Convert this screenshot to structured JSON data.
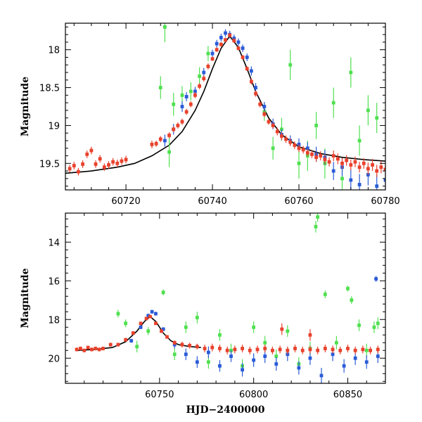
{
  "chart_data": [
    {
      "type": "scatter",
      "panel": "top",
      "xlabel": "",
      "ylabel": "Magnitude",
      "xlim": [
        60706,
        60780
      ],
      "ylim": [
        19.85,
        17.65
      ],
      "y_inverted": true,
      "xticks": [
        60720,
        60740,
        60760,
        60780
      ],
      "xtick_labels": [
        "60720",
        "60740",
        "60760",
        "60780"
      ],
      "yticks": [
        18,
        18.5,
        19,
        19.5
      ],
      "ytick_labels": [
        "18",
        "18.5",
        "19",
        "19.5"
      ],
      "grid": false,
      "legend": "none",
      "model_curve": {
        "color": "#000000",
        "x": [
          60706,
          60712,
          60718,
          60722,
          60726,
          60730,
          60733,
          60736,
          60738,
          60740,
          60742,
          60744,
          60746,
          60748,
          60750,
          60753,
          60756,
          60760,
          60765,
          60770,
          60775,
          60780
        ],
        "y": [
          19.63,
          19.6,
          19.55,
          19.5,
          19.4,
          19.26,
          19.08,
          18.8,
          18.55,
          18.25,
          17.98,
          17.82,
          17.97,
          18.25,
          18.55,
          18.9,
          19.12,
          19.28,
          19.37,
          19.42,
          19.45,
          19.47
        ]
      },
      "series": [
        {
          "color": "#e8412c",
          "x": [
            60707,
            60708,
            60709,
            60710,
            60711,
            60712,
            60713,
            60714,
            60715,
            60716,
            60717,
            60718,
            60719,
            60720,
            60726,
            60727,
            60728,
            60730,
            60731,
            60732,
            60733,
            60734,
            60735,
            60736,
            60737,
            60738,
            60739,
            60740,
            60741,
            60742,
            60743,
            60744,
            60745,
            60746,
            60747,
            60748,
            60749,
            60750,
            60751,
            60752,
            60753,
            60754,
            60755,
            60756,
            60757,
            60758,
            60759,
            60760,
            60761,
            60762,
            60763,
            60764,
            60765,
            60766,
            60767,
            60768,
            60769,
            60770,
            60771,
            60772,
            60773,
            60774,
            60775,
            60776,
            60777,
            60778,
            60779,
            60780
          ],
          "y": [
            19.57,
            19.53,
            19.61,
            19.51,
            19.38,
            19.33,
            19.51,
            19.44,
            19.55,
            19.52,
            19.48,
            19.5,
            19.47,
            19.45,
            19.25,
            19.24,
            19.18,
            19.13,
            19.05,
            19.0,
            18.95,
            18.82,
            18.72,
            18.6,
            18.48,
            18.38,
            18.22,
            18.12,
            18.0,
            17.93,
            17.87,
            17.81,
            17.88,
            17.98,
            18.1,
            18.25,
            18.42,
            18.58,
            18.72,
            18.85,
            18.95,
            19.0,
            19.08,
            19.14,
            19.18,
            19.22,
            19.26,
            19.3,
            19.32,
            19.36,
            19.38,
            19.42,
            19.4,
            19.45,
            19.48,
            19.4,
            19.44,
            19.5,
            19.46,
            19.52,
            19.48,
            19.55,
            19.5,
            19.57,
            19.52,
            19.6,
            19.55,
            19.58
          ],
          "yerr": [
            0.05,
            0.05,
            0.05,
            0.05,
            0.05,
            0.05,
            0.05,
            0.05,
            0.05,
            0.05,
            0.05,
            0.05,
            0.05,
            0.05,
            0.05,
            0.04,
            0.04,
            0.04,
            0.04,
            0.04,
            0.04,
            0.04,
            0.04,
            0.04,
            0.04,
            0.04,
            0.04,
            0.03,
            0.03,
            0.03,
            0.03,
            0.03,
            0.03,
            0.03,
            0.03,
            0.03,
            0.04,
            0.04,
            0.04,
            0.04,
            0.04,
            0.04,
            0.05,
            0.05,
            0.05,
            0.05,
            0.05,
            0.05,
            0.05,
            0.05,
            0.05,
            0.06,
            0.06,
            0.06,
            0.06,
            0.07,
            0.07,
            0.07,
            0.07,
            0.07,
            0.07,
            0.07,
            0.07,
            0.08,
            0.08,
            0.08,
            0.08,
            0.08
          ]
        },
        {
          "color": "#2a5bd7",
          "x": [
            60729,
            60731,
            60733,
            60734,
            60736,
            60738,
            60740,
            60741,
            60742,
            60743,
            60744,
            60745,
            60746,
            60747,
            60748,
            60749,
            60750,
            60752,
            60754,
            60756,
            60758,
            60760,
            60762,
            60764,
            60766,
            60768,
            60770,
            60772,
            60774,
            60776,
            60778,
            60780
          ],
          "y": [
            19.2,
            19.05,
            18.75,
            18.62,
            18.55,
            18.3,
            18.05,
            17.92,
            17.84,
            17.78,
            17.8,
            17.85,
            17.9,
            17.98,
            18.1,
            18.28,
            18.5,
            18.75,
            18.98,
            19.12,
            19.2,
            19.25,
            19.3,
            19.38,
            19.42,
            19.6,
            19.55,
            19.72,
            19.78,
            19.65,
            19.8,
            19.72
          ],
          "yerr": [
            0.08,
            0.07,
            0.07,
            0.06,
            0.06,
            0.06,
            0.05,
            0.05,
            0.05,
            0.05,
            0.05,
            0.05,
            0.05,
            0.05,
            0.05,
            0.06,
            0.06,
            0.06,
            0.07,
            0.07,
            0.07,
            0.08,
            0.08,
            0.1,
            0.1,
            0.12,
            0.12,
            0.14,
            0.14,
            0.14,
            0.15,
            0.15
          ]
        },
        {
          "color": "#4fe04f",
          "x": [
            60728,
            60729,
            60730,
            60731,
            60733,
            60735,
            60737,
            60739,
            60752,
            60754,
            60756,
            60758,
            60760,
            60762,
            60764,
            60766,
            60768,
            60770,
            60772,
            60774,
            60776,
            60778
          ],
          "y": [
            18.5,
            17.7,
            19.35,
            18.72,
            18.6,
            18.55,
            18.35,
            18.05,
            18.82,
            19.3,
            19.05,
            18.2,
            19.5,
            19.4,
            19.0,
            19.5,
            18.7,
            19.7,
            18.3,
            19.2,
            18.8,
            18.9
          ],
          "yerr": [
            0.15,
            0.2,
            0.2,
            0.15,
            0.12,
            0.12,
            0.12,
            0.1,
            0.12,
            0.15,
            0.15,
            0.2,
            0.2,
            0.2,
            0.18,
            0.2,
            0.2,
            0.2,
            0.2,
            0.2,
            0.2,
            0.2
          ]
        }
      ]
    },
    {
      "type": "scatter",
      "panel": "bottom",
      "xlabel": "HJD−2400000",
      "ylabel": "Magnitude",
      "xlim": [
        60700,
        60870
      ],
      "ylim": [
        21.3,
        12.5
      ],
      "y_inverted": true,
      "xticks": [
        60750,
        60800,
        60850
      ],
      "xtick_labels": [
        "60750",
        "60800",
        "60850"
      ],
      "yticks": [
        14,
        16,
        18,
        20
      ],
      "ytick_labels": [
        "14",
        "16",
        "18",
        "20"
      ],
      "grid": false,
      "legend": "none",
      "model_curve": {
        "color": "#000000",
        "x": [
          60706,
          60715,
          60725,
          60732,
          60738,
          60742,
          60745,
          60748,
          60752,
          60756,
          60760,
          60766,
          60772
        ],
        "y": [
          19.6,
          19.55,
          19.45,
          19.15,
          18.6,
          18.1,
          17.85,
          18.1,
          18.7,
          19.1,
          19.3,
          19.4,
          19.45
        ]
      },
      "series": [
        {
          "color": "#e8412c",
          "x": [
            60706,
            60708,
            60710,
            60712,
            60714,
            60716,
            60718,
            60720,
            60724,
            60728,
            60732,
            60736,
            60740,
            60743,
            60745,
            60748,
            60751,
            60754,
            60758,
            60762,
            60766,
            60770,
            60774,
            60778,
            60782,
            60786,
            60790,
            60794,
            60798,
            60802,
            60806,
            60810,
            60814,
            60818,
            60822,
            60826,
            60830,
            60834,
            60838,
            60842,
            60846,
            60850,
            60854,
            60858,
            60862,
            60866,
            60815,
            60830
          ],
          "y": [
            19.55,
            19.5,
            19.6,
            19.45,
            19.55,
            19.5,
            19.55,
            19.5,
            19.3,
            19.3,
            19.05,
            18.7,
            18.2,
            17.95,
            17.85,
            18.2,
            18.6,
            18.9,
            19.2,
            19.3,
            19.35,
            19.4,
            19.5,
            19.45,
            19.5,
            19.6,
            19.55,
            19.5,
            19.6,
            19.55,
            19.5,
            19.6,
            19.55,
            19.6,
            19.5,
            19.6,
            19.55,
            19.6,
            19.5,
            19.55,
            19.6,
            19.5,
            19.6,
            19.55,
            19.6,
            19.55,
            18.5,
            18.8
          ],
          "yerr": [
            0.1,
            0.1,
            0.1,
            0.1,
            0.1,
            0.1,
            0.1,
            0.1,
            0.1,
            0.1,
            0.1,
            0.1,
            0.08,
            0.08,
            0.08,
            0.08,
            0.1,
            0.1,
            0.12,
            0.15,
            0.15,
            0.15,
            0.2,
            0.2,
            0.2,
            0.2,
            0.2,
            0.2,
            0.2,
            0.2,
            0.2,
            0.2,
            0.2,
            0.2,
            0.2,
            0.2,
            0.2,
            0.2,
            0.2,
            0.2,
            0.2,
            0.2,
            0.2,
            0.2,
            0.2,
            0.2,
            0.3,
            0.3
          ]
        },
        {
          "color": "#2a5bd7",
          "x": [
            60735,
            60740,
            60744,
            60746,
            60748,
            60752,
            60758,
            60764,
            60770,
            60776,
            60782,
            60788,
            60794,
            60800,
            60806,
            60812,
            60818,
            60824,
            60830,
            60836,
            60842,
            60848,
            60854,
            60860,
            60866,
            60865
          ],
          "y": [
            19.1,
            18.4,
            17.8,
            17.6,
            17.7,
            18.5,
            19.3,
            19.8,
            20.2,
            19.7,
            20.4,
            19.9,
            20.6,
            20.1,
            19.9,
            20.3,
            19.8,
            20.5,
            20.0,
            20.9,
            19.8,
            20.4,
            20.0,
            20.2,
            19.9,
            15.9
          ],
          "yerr": [
            0.1,
            0.1,
            0.1,
            0.1,
            0.1,
            0.1,
            0.2,
            0.3,
            0.3,
            0.3,
            0.3,
            0.3,
            0.35,
            0.35,
            0.35,
            0.35,
            0.35,
            0.35,
            0.35,
            0.4,
            0.35,
            0.35,
            0.35,
            0.35,
            0.35,
            0.15
          ]
        },
        {
          "color": "#4fe04f",
          "x": [
            60728,
            60732,
            60738,
            60744,
            60752,
            60758,
            60764,
            60770,
            60776,
            60782,
            60788,
            60794,
            60800,
            60806,
            60812,
            60818,
            60824,
            60830,
            60833,
            60834,
            60838,
            60844,
            60850,
            60852,
            60856,
            60860,
            60864,
            60866
          ],
          "y": [
            17.7,
            18.2,
            19.4,
            18.6,
            16.6,
            19.8,
            18.4,
            17.9,
            20.2,
            18.8,
            19.6,
            20.4,
            18.4,
            19.2,
            19.9,
            18.6,
            20.3,
            19.5,
            13.2,
            12.7,
            16.7,
            19.2,
            16.4,
            17.0,
            18.3,
            19.6,
            18.4,
            18.2
          ],
          "yerr": [
            0.2,
            0.2,
            0.3,
            0.2,
            0.15,
            0.3,
            0.3,
            0.3,
            0.35,
            0.3,
            0.35,
            0.35,
            0.3,
            0.35,
            0.35,
            0.3,
            0.35,
            0.35,
            0.3,
            0.25,
            0.2,
            0.35,
            0.15,
            0.2,
            0.3,
            0.35,
            0.3,
            0.3
          ]
        }
      ]
    }
  ]
}
